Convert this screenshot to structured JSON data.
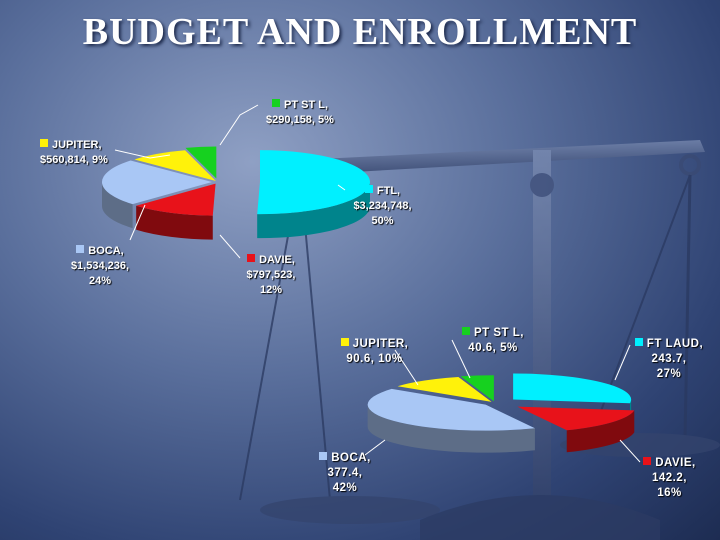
{
  "title": "BUDGET AND ENROLLMENT",
  "colors": {
    "FTL": "#00f0ff",
    "DAVIE": "#e8121a",
    "BOCA": "#a9c7f5",
    "JUPITER": "#fff20a",
    "PT ST L": "#16d11f"
  },
  "chart_data": [
    {
      "type": "pie",
      "title": "",
      "categories": [
        "FTL",
        "DAVIE",
        "BOCA",
        "JUPITER",
        "PT ST L"
      ],
      "values": [
        3234748,
        797523,
        1534236,
        560814,
        290158
      ],
      "percent_labels": [
        "50%",
        "12%",
        "24%",
        "9%",
        "5%"
      ],
      "value_labels": [
        "$3,234,748,",
        "$797,523,",
        "$1,534,236,",
        "$560,814,",
        "$290,158,"
      ],
      "label_names": [
        "FTL,",
        "DAVIE,",
        "BOCA,",
        "JUPITER,",
        "PT ST L,"
      ],
      "legend": "none"
    },
    {
      "type": "pie",
      "title": "",
      "categories": [
        "FT LAUD",
        "DAVIE",
        "BOCA",
        "JUPITER",
        "PT ST L"
      ],
      "values": [
        243.7,
        142.2,
        377.4,
        90.6,
        40.6
      ],
      "percent_labels": [
        "27%",
        "16%",
        "42%",
        "10%",
        "5%"
      ],
      "value_labels": [
        "243.7,",
        "142.2,",
        "377.4,",
        "90.6,",
        "40.6,"
      ],
      "label_names": [
        "FT LAUD,",
        "DAVIE,",
        "BOCA,",
        "JUPITER,",
        "PT ST L,"
      ],
      "legend": "none"
    }
  ]
}
